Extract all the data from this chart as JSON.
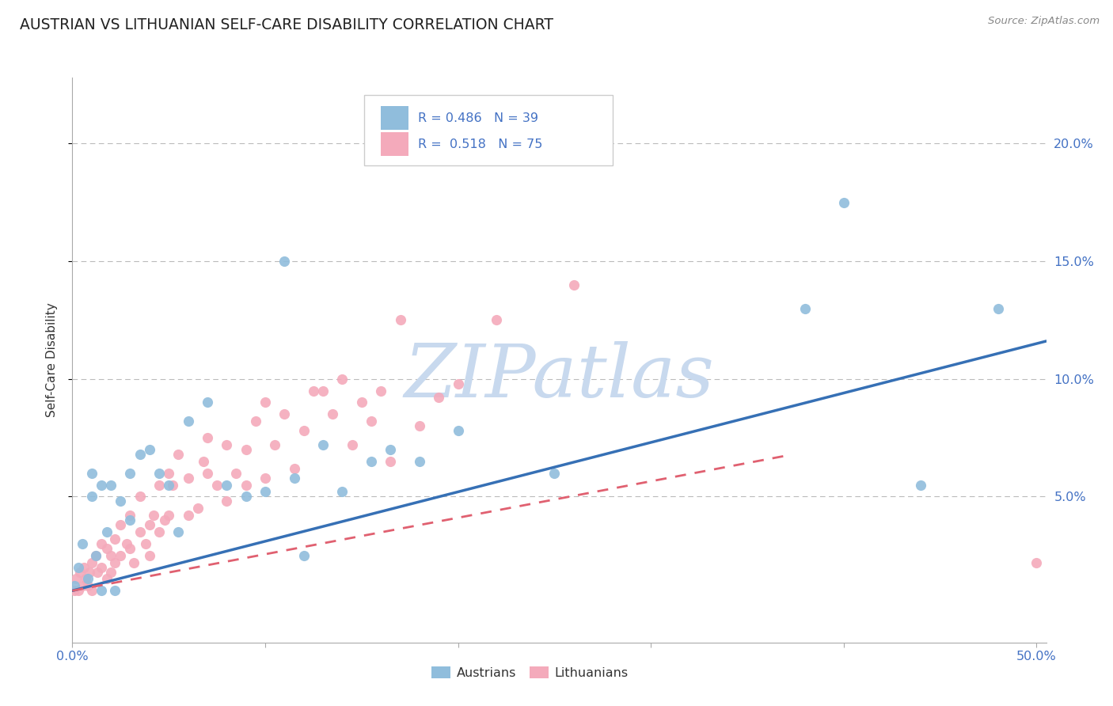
{
  "title": "AUSTRIAN VS LITHUANIAN SELF-CARE DISABILITY CORRELATION CHART",
  "source": "Source: ZipAtlas.com",
  "ylabel": "Self-Care Disability",
  "ytick_labels": [
    "20.0%",
    "15.0%",
    "10.0%",
    "5.0%"
  ],
  "ytick_values": [
    0.2,
    0.15,
    0.1,
    0.05
  ],
  "xlim": [
    0.0,
    0.505
  ],
  "ylim": [
    -0.012,
    0.228
  ],
  "legend_austrians": "Austrians",
  "legend_lithuanians": "Lithuanians",
  "R_austrians": 0.486,
  "N_austrians": 39,
  "R_lithuanians": 0.518,
  "N_lithuanians": 75,
  "color_austrians": "#90BDDC",
  "color_lithuanians": "#F4AABB",
  "color_blue_line": "#3670B5",
  "color_pink_line": "#E06070",
  "color_blue_text": "#4472C4",
  "color_title": "#222222",
  "background_color": "#FFFFFF",
  "watermark_color": "#C8D9EE",
  "blue_line_intercept": 0.01,
  "blue_line_slope": 0.21,
  "pink_line_intercept": 0.01,
  "pink_line_slope": 0.155,
  "pink_line_xmax": 0.37,
  "austrians_x": [
    0.001,
    0.003,
    0.005,
    0.008,
    0.01,
    0.01,
    0.012,
    0.015,
    0.015,
    0.018,
    0.02,
    0.022,
    0.025,
    0.03,
    0.03,
    0.035,
    0.04,
    0.045,
    0.05,
    0.055,
    0.06,
    0.07,
    0.08,
    0.09,
    0.1,
    0.11,
    0.115,
    0.12,
    0.13,
    0.14,
    0.155,
    0.165,
    0.18,
    0.2,
    0.25,
    0.38,
    0.4,
    0.44,
    0.48
  ],
  "austrians_y": [
    0.012,
    0.02,
    0.03,
    0.015,
    0.05,
    0.06,
    0.025,
    0.055,
    0.01,
    0.035,
    0.055,
    0.01,
    0.048,
    0.06,
    0.04,
    0.068,
    0.07,
    0.06,
    0.055,
    0.035,
    0.082,
    0.09,
    0.055,
    0.05,
    0.052,
    0.15,
    0.058,
    0.025,
    0.072,
    0.052,
    0.065,
    0.07,
    0.065,
    0.078,
    0.06,
    0.13,
    0.175,
    0.055,
    0.13
  ],
  "lithuanians_x": [
    0.001,
    0.002,
    0.003,
    0.004,
    0.005,
    0.006,
    0.007,
    0.008,
    0.009,
    0.01,
    0.01,
    0.012,
    0.013,
    0.015,
    0.015,
    0.018,
    0.018,
    0.02,
    0.02,
    0.022,
    0.022,
    0.025,
    0.025,
    0.028,
    0.03,
    0.03,
    0.032,
    0.035,
    0.035,
    0.038,
    0.04,
    0.04,
    0.042,
    0.045,
    0.045,
    0.048,
    0.05,
    0.05,
    0.052,
    0.055,
    0.06,
    0.06,
    0.065,
    0.068,
    0.07,
    0.07,
    0.075,
    0.08,
    0.08,
    0.085,
    0.09,
    0.09,
    0.095,
    0.1,
    0.1,
    0.105,
    0.11,
    0.115,
    0.12,
    0.125,
    0.13,
    0.135,
    0.14,
    0.145,
    0.15,
    0.155,
    0.16,
    0.165,
    0.17,
    0.18,
    0.19,
    0.2,
    0.22,
    0.26,
    0.5
  ],
  "lithuanians_y": [
    0.01,
    0.015,
    0.01,
    0.018,
    0.012,
    0.02,
    0.015,
    0.012,
    0.018,
    0.022,
    0.01,
    0.025,
    0.018,
    0.02,
    0.03,
    0.028,
    0.015,
    0.025,
    0.018,
    0.032,
    0.022,
    0.025,
    0.038,
    0.03,
    0.028,
    0.042,
    0.022,
    0.035,
    0.05,
    0.03,
    0.038,
    0.025,
    0.042,
    0.035,
    0.055,
    0.04,
    0.06,
    0.042,
    0.055,
    0.068,
    0.058,
    0.042,
    0.045,
    0.065,
    0.06,
    0.075,
    0.055,
    0.048,
    0.072,
    0.06,
    0.055,
    0.07,
    0.082,
    0.058,
    0.09,
    0.072,
    0.085,
    0.062,
    0.078,
    0.095,
    0.095,
    0.085,
    0.1,
    0.072,
    0.09,
    0.082,
    0.095,
    0.065,
    0.125,
    0.08,
    0.092,
    0.098,
    0.125,
    0.14,
    0.022
  ]
}
